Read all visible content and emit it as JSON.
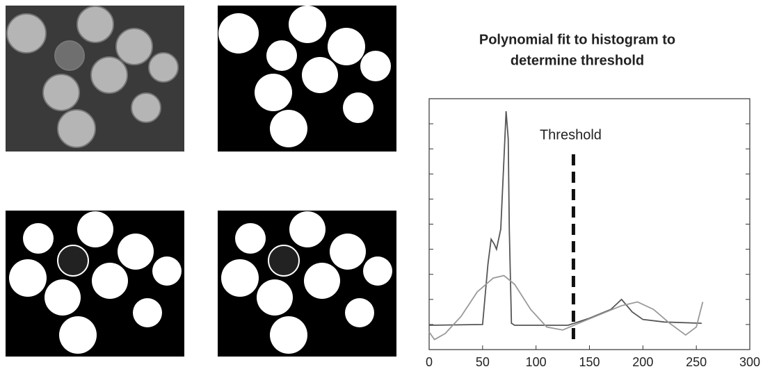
{
  "chart_data": {
    "type": "line",
    "title": [
      "Polynomial fit to histogram to",
      "determine threshold"
    ],
    "annotation": "Threshold",
    "threshold": 135,
    "xlim": [
      0,
      300
    ],
    "xticks": [
      0,
      50,
      100,
      150,
      200,
      250,
      300
    ],
    "ylim": [
      0,
      10
    ],
    "yticks": [
      1,
      2,
      3,
      4,
      5,
      6,
      7,
      8,
      9
    ],
    "series": [
      {
        "color": "#555555",
        "x": [
          0,
          50,
          55,
          58,
          61,
          63,
          67,
          70,
          72,
          74,
          75,
          77,
          80,
          130,
          150,
          170,
          180,
          190,
          200,
          220,
          255
        ],
        "values": [
          0.97,
          1.0,
          3.4,
          4.4,
          4.2,
          4.0,
          4.8,
          7.6,
          9.5,
          8.4,
          4.8,
          1.05,
          0.97,
          0.97,
          1.25,
          1.6,
          2.0,
          1.5,
          1.2,
          1.1,
          1.05
        ]
      },
      {
        "color": "#999999",
        "x": [
          0,
          5,
          15,
          30,
          45,
          60,
          70,
          80,
          95,
          110,
          125,
          140,
          160,
          180,
          195,
          210,
          225,
          240,
          250,
          256
        ],
        "values": [
          0.7,
          0.4,
          0.64,
          1.33,
          2.3,
          2.85,
          2.95,
          2.6,
          1.6,
          0.9,
          0.78,
          1.05,
          1.4,
          1.75,
          1.9,
          1.6,
          1.05,
          0.58,
          0.9,
          1.9
        ]
      }
    ]
  }
}
